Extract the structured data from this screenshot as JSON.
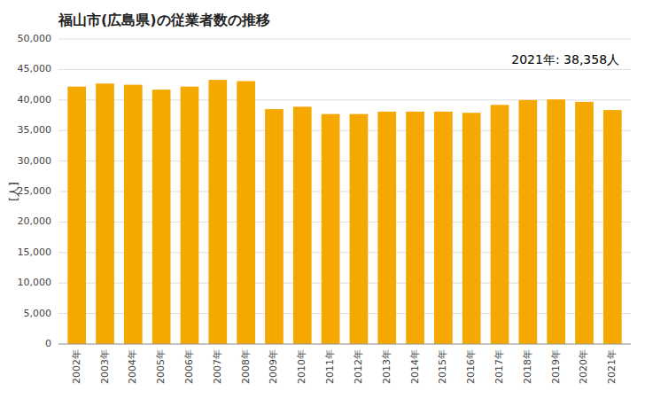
{
  "chart_data": {
    "type": "bar",
    "title": "福山市(広島県)の従業者数の推移",
    "ylabel": "[人]",
    "annotation": "2021年: 38,358人",
    "categories": [
      "2002年",
      "2003年",
      "2004年",
      "2005年",
      "2006年",
      "2007年",
      "2008年",
      "2009年",
      "2010年",
      "2011年",
      "2012年",
      "2013年",
      "2014年",
      "2015年",
      "2016年",
      "2017年",
      "2018年",
      "2019年",
      "2020年",
      "2021年"
    ],
    "values": [
      42200,
      42700,
      42500,
      41700,
      42200,
      43300,
      43100,
      38500,
      38900,
      37700,
      37700,
      38100,
      38100,
      38100,
      37900,
      39200,
      40000,
      40100,
      39700,
      38358
    ],
    "color": "#F5A800",
    "ylim": [
      0,
      50000
    ],
    "yticks": [
      0,
      {
        "value": 5000,
        "label": "5,000"
      },
      {
        "value": 10000,
        "label": "10,000"
      },
      {
        "value": 15000,
        "label": "15,000"
      },
      {
        "value": 20000,
        "label": "20,000"
      },
      {
        "value": 25000,
        "label": "25,000"
      },
      {
        "value": 30000,
        "label": "30,000"
      },
      {
        "value": 35000,
        "label": "35,000"
      },
      {
        "value": 40000,
        "label": "40,000"
      },
      {
        "value": 45000,
        "label": "45,000"
      },
      {
        "value": 50000,
        "label": "50,000"
      }
    ],
    "grid": true
  }
}
